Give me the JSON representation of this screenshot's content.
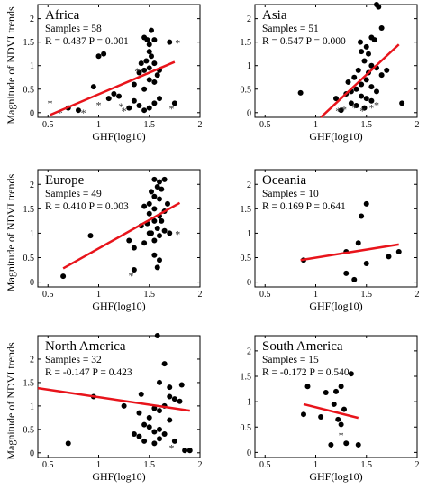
{
  "figure": {
    "ylabel": "Magnitude of NDVI trends",
    "xlabel": "GHF(log10)"
  },
  "colors": {
    "points": "#000000",
    "fit_line": "#e8141b",
    "axes": "#000000"
  },
  "chart_data": [
    {
      "type": "scatter",
      "title": "Africa",
      "samples_label": "Samples = 58",
      "stats_label": "R = 0.437   P = 0.001",
      "xlabel": "GHF(log10)",
      "ylabel": "Magnitude of NDVI trends",
      "xlim": [
        0.4,
        2.0
      ],
      "ylim": [
        -0.1,
        2.3
      ],
      "xticks": [
        0.5,
        1,
        1.5,
        2
      ],
      "yticks": [
        0,
        0.5,
        1,
        1.5,
        2
      ],
      "xtick_labels": [
        "0.5",
        "1",
        "1.5",
        "2"
      ],
      "ytick_labels": [
        "0",
        "0.5",
        "1",
        "1.5",
        "2"
      ],
      "fit_line": {
        "x": [
          0.52,
          1.75
        ],
        "y": [
          -0.05,
          1.08
        ]
      },
      "points": [
        {
          "x": 1.45,
          "y": 1.6
        },
        {
          "x": 1.48,
          "y": 1.55
        },
        {
          "x": 1.5,
          "y": 1.45
        },
        {
          "x": 1.5,
          "y": 1.3
        },
        {
          "x": 1.55,
          "y": 1.55
        },
        {
          "x": 1.52,
          "y": 1.2
        },
        {
          "x": 1.47,
          "y": 1.1
        },
        {
          "x": 1.55,
          "y": 1.05
        },
        {
          "x": 1.5,
          "y": 0.95
        },
        {
          "x": 1.45,
          "y": 0.9
        },
        {
          "x": 1.4,
          "y": 0.85
        },
        {
          "x": 1.58,
          "y": 0.8
        },
        {
          "x": 1.5,
          "y": 0.7
        },
        {
          "x": 1.55,
          "y": 0.65
        },
        {
          "x": 1.45,
          "y": 0.5
        },
        {
          "x": 1.35,
          "y": 0.25
        },
        {
          "x": 1.4,
          "y": 0.15
        },
        {
          "x": 1.45,
          "y": 0.05
        },
        {
          "x": 1.5,
          "y": 0.1
        },
        {
          "x": 1.55,
          "y": 0.2
        },
        {
          "x": 1.6,
          "y": 0.9
        },
        {
          "x": 1.0,
          "y": 1.2
        },
        {
          "x": 1.05,
          "y": 1.25
        },
        {
          "x": 1.7,
          "y": 1.5
        },
        {
          "x": 1.15,
          "y": 0.4
        },
        {
          "x": 1.2,
          "y": 0.35
        },
        {
          "x": 1.1,
          "y": 0.3
        },
        {
          "x": 0.8,
          "y": 0.05
        },
        {
          "x": 1.75,
          "y": 0.2
        },
        {
          "x": 0.7,
          "y": 0.1
        },
        {
          "x": 1.3,
          "y": 0.1
        },
        {
          "x": 1.52,
          "y": 1.75
        },
        {
          "x": 1.42,
          "y": 1.05
        },
        {
          "x": 1.6,
          "y": 0.3
        },
        {
          "x": 1.35,
          "y": 0.6
        },
        {
          "x": 0.95,
          "y": 0.55
        }
      ],
      "star_points": [
        {
          "x": 0.52,
          "y": 0.22
        },
        {
          "x": 0.62,
          "y": 0.02
        },
        {
          "x": 0.85,
          "y": 0.02
        },
        {
          "x": 1.0,
          "y": 0.18
        },
        {
          "x": 1.22,
          "y": 0.15
        },
        {
          "x": 1.25,
          "y": 0.05
        },
        {
          "x": 1.38,
          "y": 0.9
        },
        {
          "x": 1.72,
          "y": 0.1
        },
        {
          "x": 1.78,
          "y": 1.5
        }
      ]
    },
    {
      "type": "scatter",
      "title": "Asia",
      "samples_label": "Samples = 51",
      "stats_label": "R = 0.547   P = 0.000",
      "xlabel": "GHF(log10)",
      "ylabel": "Magnitude of NDVI trends",
      "xlim": [
        0.4,
        2.0
      ],
      "ylim": [
        -0.1,
        2.3
      ],
      "xticks": [
        0.5,
        1,
        1.5,
        2
      ],
      "yticks": [
        0,
        0.5,
        1,
        1.5,
        2
      ],
      "xtick_labels": [
        "0.5",
        "1",
        "1.5",
        "2"
      ],
      "ytick_labels": [
        "0",
        "0.5",
        "1",
        "1.5",
        "2"
      ],
      "fit_line": {
        "x": [
          1.05,
          1.82
        ],
        "y": [
          -0.1,
          1.45
        ]
      },
      "points": [
        {
          "x": 1.6,
          "y": 2.3
        },
        {
          "x": 1.62,
          "y": 2.25
        },
        {
          "x": 1.65,
          "y": 1.8
        },
        {
          "x": 1.55,
          "y": 1.6
        },
        {
          "x": 1.5,
          "y": 1.4
        },
        {
          "x": 1.45,
          "y": 1.3
        },
        {
          "x": 1.52,
          "y": 1.25
        },
        {
          "x": 1.48,
          "y": 1.1
        },
        {
          "x": 1.55,
          "y": 1.0
        },
        {
          "x": 1.6,
          "y": 0.95
        },
        {
          "x": 1.42,
          "y": 0.9
        },
        {
          "x": 1.38,
          "y": 0.75
        },
        {
          "x": 1.5,
          "y": 0.7
        },
        {
          "x": 1.45,
          "y": 0.6
        },
        {
          "x": 1.55,
          "y": 0.55
        },
        {
          "x": 1.4,
          "y": 0.5
        },
        {
          "x": 1.35,
          "y": 0.45
        },
        {
          "x": 1.3,
          "y": 0.4
        },
        {
          "x": 1.45,
          "y": 0.35
        },
        {
          "x": 1.5,
          "y": 0.3
        },
        {
          "x": 1.55,
          "y": 0.25
        },
        {
          "x": 1.35,
          "y": 0.2
        },
        {
          "x": 1.4,
          "y": 0.15
        },
        {
          "x": 1.48,
          "y": 0.1
        },
        {
          "x": 1.25,
          "y": 0.05
        },
        {
          "x": 1.2,
          "y": 0.3
        },
        {
          "x": 0.85,
          "y": 0.42
        },
        {
          "x": 1.85,
          "y": 0.2
        },
        {
          "x": 1.7,
          "y": 0.9
        },
        {
          "x": 1.65,
          "y": 0.8
        },
        {
          "x": 1.58,
          "y": 1.55
        },
        {
          "x": 1.44,
          "y": 1.5
        },
        {
          "x": 1.52,
          "y": 0.85
        },
        {
          "x": 1.32,
          "y": 0.65
        },
        {
          "x": 1.6,
          "y": 0.45
        }
      ],
      "star_points": [
        {
          "x": 1.22,
          "y": 0.05
        },
        {
          "x": 1.28,
          "y": 0.08
        },
        {
          "x": 1.38,
          "y": 0.12
        },
        {
          "x": 1.46,
          "y": 0.05
        },
        {
          "x": 1.55,
          "y": 0.12
        },
        {
          "x": 1.6,
          "y": 0.18
        }
      ]
    },
    {
      "type": "scatter",
      "title": "Europe",
      "samples_label": "Samples = 49",
      "stats_label": "R = 0.410   P = 0.003",
      "xlabel": "GHF(log10)",
      "ylabel": "Magnitude of NDVI trends",
      "xlim": [
        0.4,
        2.0
      ],
      "ylim": [
        -0.1,
        2.3
      ],
      "xticks": [
        0.5,
        1,
        1.5,
        2
      ],
      "yticks": [
        0,
        0.5,
        1,
        1.5,
        2
      ],
      "xtick_labels": [
        "0.5",
        "1",
        "1.5",
        "2"
      ],
      "ytick_labels": [
        "0",
        "0.5",
        "1",
        "1.5",
        "2"
      ],
      "fit_line": {
        "x": [
          0.65,
          1.8
        ],
        "y": [
          0.28,
          1.62
        ]
      },
      "points": [
        {
          "x": 1.55,
          "y": 2.1
        },
        {
          "x": 1.6,
          "y": 2.05
        },
        {
          "x": 1.65,
          "y": 2.1
        },
        {
          "x": 1.58,
          "y": 1.95
        },
        {
          "x": 1.62,
          "y": 1.9
        },
        {
          "x": 1.52,
          "y": 1.85
        },
        {
          "x": 1.55,
          "y": 1.75
        },
        {
          "x": 1.6,
          "y": 1.7
        },
        {
          "x": 1.5,
          "y": 1.6
        },
        {
          "x": 1.45,
          "y": 1.55
        },
        {
          "x": 1.55,
          "y": 1.5
        },
        {
          "x": 1.65,
          "y": 1.45
        },
        {
          "x": 1.5,
          "y": 1.4
        },
        {
          "x": 1.6,
          "y": 1.35
        },
        {
          "x": 1.55,
          "y": 1.25
        },
        {
          "x": 1.48,
          "y": 1.2
        },
        {
          "x": 1.58,
          "y": 1.1
        },
        {
          "x": 1.65,
          "y": 1.05
        },
        {
          "x": 1.52,
          "y": 1.0
        },
        {
          "x": 1.6,
          "y": 0.95
        },
        {
          "x": 1.55,
          "y": 0.85
        },
        {
          "x": 1.45,
          "y": 0.8
        },
        {
          "x": 1.35,
          "y": 0.7
        },
        {
          "x": 1.3,
          "y": 0.85
        },
        {
          "x": 1.55,
          "y": 0.55
        },
        {
          "x": 1.6,
          "y": 0.45
        },
        {
          "x": 1.58,
          "y": 0.3
        },
        {
          "x": 1.35,
          "y": 0.25
        },
        {
          "x": 0.92,
          "y": 0.95
        },
        {
          "x": 0.65,
          "y": 0.12
        },
        {
          "x": 1.7,
          "y": 1.0
        },
        {
          "x": 1.68,
          "y": 1.6
        },
        {
          "x": 1.62,
          "y": 1.25
        },
        {
          "x": 1.5,
          "y": 1.0
        },
        {
          "x": 1.42,
          "y": 1.15
        }
      ],
      "star_points": [
        {
          "x": 1.32,
          "y": 0.15
        },
        {
          "x": 1.78,
          "y": 1.0
        }
      ]
    },
    {
      "type": "scatter",
      "title": "Oceania",
      "samples_label": "Samples = 10",
      "stats_label": "R = 0.169   P = 0.641",
      "xlabel": "GHF(log10)",
      "ylabel": "Magnitude of NDVI trends",
      "xlim": [
        0.4,
        2.0
      ],
      "ylim": [
        -0.1,
        2.3
      ],
      "xticks": [
        0.5,
        1,
        1.5,
        2
      ],
      "yticks": [
        0,
        0.5,
        1,
        1.5,
        2
      ],
      "xtick_labels": [
        "0.5",
        "1",
        "1.5",
        "2"
      ],
      "ytick_labels": [
        "0",
        "0.5",
        "1",
        "1.5",
        "2"
      ],
      "fit_line": {
        "x": [
          0.85,
          1.82
        ],
        "y": [
          0.45,
          0.77
        ]
      },
      "points": [
        {
          "x": 1.5,
          "y": 1.6
        },
        {
          "x": 1.45,
          "y": 1.35
        },
        {
          "x": 1.42,
          "y": 0.8
        },
        {
          "x": 1.3,
          "y": 0.62
        },
        {
          "x": 1.5,
          "y": 0.38
        },
        {
          "x": 1.3,
          "y": 0.18
        },
        {
          "x": 1.38,
          "y": 0.05
        },
        {
          "x": 0.88,
          "y": 0.45
        },
        {
          "x": 1.72,
          "y": 0.52
        },
        {
          "x": 1.82,
          "y": 0.62
        }
      ],
      "star_points": []
    },
    {
      "type": "scatter",
      "title": "North America",
      "samples_label": "Samples = 32",
      "stats_label": "R = -0.147   P = 0.423",
      "xlabel": "GHF(log10)",
      "ylabel": "Magnitude of NDVI trends",
      "xlim": [
        0.4,
        2.0
      ],
      "ylim": [
        -0.1,
        2.5
      ],
      "xticks": [
        0.5,
        1,
        1.5,
        2
      ],
      "yticks": [
        0,
        0.5,
        1,
        1.5,
        2
      ],
      "xtick_labels": [
        "0.5",
        "1",
        "1.5",
        "2"
      ],
      "ytick_labels": [
        "0",
        "0.5",
        "1",
        "1.5",
        "2"
      ],
      "fit_line": {
        "x": [
          0.4,
          1.9
        ],
        "y": [
          1.38,
          0.9
        ]
      },
      "points": [
        {
          "x": 1.58,
          "y": 2.5
        },
        {
          "x": 1.65,
          "y": 1.9
        },
        {
          "x": 1.7,
          "y": 1.4
        },
        {
          "x": 1.6,
          "y": 1.5
        },
        {
          "x": 1.82,
          "y": 1.45
        },
        {
          "x": 0.95,
          "y": 1.2
        },
        {
          "x": 1.42,
          "y": 1.25
        },
        {
          "x": 1.7,
          "y": 1.2
        },
        {
          "x": 1.75,
          "y": 1.15
        },
        {
          "x": 1.8,
          "y": 1.1
        },
        {
          "x": 1.65,
          "y": 1.0
        },
        {
          "x": 1.55,
          "y": 0.95
        },
        {
          "x": 1.6,
          "y": 0.9
        },
        {
          "x": 1.4,
          "y": 0.85
        },
        {
          "x": 1.5,
          "y": 0.75
        },
        {
          "x": 1.7,
          "y": 0.7
        },
        {
          "x": 1.45,
          "y": 0.6
        },
        {
          "x": 1.5,
          "y": 0.55
        },
        {
          "x": 1.6,
          "y": 0.5
        },
        {
          "x": 1.55,
          "y": 0.45
        },
        {
          "x": 1.65,
          "y": 0.4
        },
        {
          "x": 1.4,
          "y": 0.35
        },
        {
          "x": 1.45,
          "y": 0.25
        },
        {
          "x": 1.55,
          "y": 0.2
        },
        {
          "x": 1.6,
          "y": 0.3
        },
        {
          "x": 1.75,
          "y": 0.25
        },
        {
          "x": 1.85,
          "y": 0.05
        },
        {
          "x": 1.9,
          "y": 0.05
        },
        {
          "x": 0.7,
          "y": 0.2
        },
        {
          "x": 1.25,
          "y": 1.0
        },
        {
          "x": 1.35,
          "y": 0.4
        }
      ],
      "star_points": [
        {
          "x": 1.72,
          "y": 0.12
        }
      ]
    },
    {
      "type": "scatter",
      "title": "South America",
      "samples_label": "Samples = 15",
      "stats_label": "R = -0.172   P = 0.540",
      "xlabel": "GHF(log10)",
      "ylabel": "Magnitude of NDVI trends",
      "xlim": [
        0.4,
        2.0
      ],
      "ylim": [
        -0.1,
        2.3
      ],
      "xticks": [
        0.5,
        1,
        1.5,
        2
      ],
      "yticks": [
        0,
        0.5,
        1,
        1.5,
        2
      ],
      "xtick_labels": [
        "0.5",
        "1",
        "1.5",
        "2"
      ],
      "ytick_labels": [
        "0",
        "0.5",
        "1",
        "1.5",
        "2"
      ],
      "fit_line": {
        "x": [
          0.88,
          1.42
        ],
        "y": [
          0.95,
          0.68
        ]
      },
      "points": [
        {
          "x": 0.92,
          "y": 1.3
        },
        {
          "x": 1.1,
          "y": 1.18
        },
        {
          "x": 1.35,
          "y": 1.55
        },
        {
          "x": 1.2,
          "y": 1.2
        },
        {
          "x": 1.25,
          "y": 1.3
        },
        {
          "x": 1.18,
          "y": 0.95
        },
        {
          "x": 1.28,
          "y": 0.85
        },
        {
          "x": 0.88,
          "y": 0.75
        },
        {
          "x": 1.05,
          "y": 0.7
        },
        {
          "x": 1.22,
          "y": 0.65
        },
        {
          "x": 1.25,
          "y": 0.55
        },
        {
          "x": 1.3,
          "y": 0.18
        },
        {
          "x": 1.42,
          "y": 0.15
        },
        {
          "x": 1.15,
          "y": 0.15
        }
      ],
      "star_points": [
        {
          "x": 1.25,
          "y": 0.35
        }
      ]
    }
  ]
}
